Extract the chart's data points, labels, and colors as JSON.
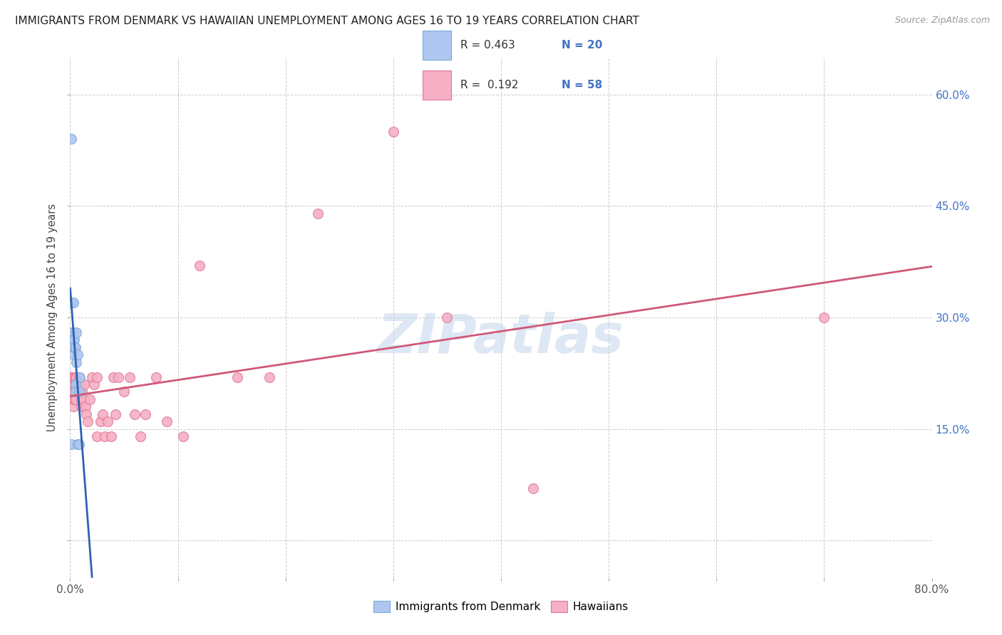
{
  "title": "IMMIGRANTS FROM DENMARK VS HAWAIIAN UNEMPLOYMENT AMONG AGES 16 TO 19 YEARS CORRELATION CHART",
  "source": "Source: ZipAtlas.com",
  "ylabel": "Unemployment Among Ages 16 to 19 years",
  "xlim": [
    0.0,
    0.8
  ],
  "ylim": [
    -0.05,
    0.65
  ],
  "ytick_positions": [
    0.0,
    0.15,
    0.3,
    0.45,
    0.6
  ],
  "ytick_labels_right": [
    "",
    "15.0%",
    "30.0%",
    "45.0%",
    "60.0%"
  ],
  "xtick_positions": [
    0.0,
    0.1,
    0.2,
    0.3,
    0.4,
    0.5,
    0.6,
    0.7,
    0.8
  ],
  "xtick_labels": [
    "0.0%",
    "",
    "",
    "",
    "",
    "",
    "",
    "",
    "80.0%"
  ],
  "denmark_R": "0.463",
  "denmark_N": "20",
  "hawaii_R": "0.192",
  "hawaii_N": "58",
  "denmark_color": "#aec6f0",
  "denmark_edge_color": "#7aabd4",
  "hawaii_color": "#f5b0c5",
  "hawaii_edge_color": "#e07898",
  "denmark_line_color": "#3060b0",
  "hawaii_line_color": "#d05878",
  "background_color": "#ffffff",
  "grid_color": "#cccccc",
  "watermark": "ZIPatlas",
  "watermark_color": "#c8d8ee",
  "legend_r1_color": "#4472c4",
  "legend_r2_color": "#4472c4",
  "denmark_x": [
    0.001,
    0.001,
    0.002,
    0.002,
    0.002,
    0.003,
    0.003,
    0.003,
    0.003,
    0.004,
    0.004,
    0.004,
    0.005,
    0.005,
    0.006,
    0.006,
    0.007,
    0.007,
    0.008,
    0.009
  ],
  "denmark_y": [
    0.54,
    0.12,
    0.32,
    0.3,
    0.27,
    0.32,
    0.28,
    0.27,
    0.25,
    0.27,
    0.26,
    0.12,
    0.26,
    0.2,
    0.28,
    0.24,
    0.25,
    0.12,
    0.2,
    0.22
  ],
  "hawaii_x": [
    0.001,
    0.001,
    0.002,
    0.002,
    0.002,
    0.003,
    0.003,
    0.003,
    0.003,
    0.004,
    0.004,
    0.004,
    0.005,
    0.005,
    0.005,
    0.006,
    0.006,
    0.007,
    0.008,
    0.008,
    0.009,
    0.01,
    0.01,
    0.011,
    0.012,
    0.013,
    0.014,
    0.015,
    0.016,
    0.018,
    0.02,
    0.022,
    0.025,
    0.025,
    0.028,
    0.03,
    0.032,
    0.035,
    0.038,
    0.04,
    0.042,
    0.045,
    0.05,
    0.055,
    0.06,
    0.065,
    0.07,
    0.08,
    0.09,
    0.105,
    0.12,
    0.155,
    0.185,
    0.23,
    0.3,
    0.35,
    0.43,
    0.7
  ],
  "hawaii_y": [
    0.2,
    0.22,
    0.22,
    0.2,
    0.2,
    0.22,
    0.2,
    0.19,
    0.18,
    0.22,
    0.21,
    0.19,
    0.22,
    0.21,
    0.19,
    0.22,
    0.2,
    0.21,
    0.22,
    0.2,
    0.21,
    0.19,
    0.18,
    0.2,
    0.19,
    0.21,
    0.18,
    0.17,
    0.16,
    0.19,
    0.22,
    0.21,
    0.22,
    0.14,
    0.16,
    0.17,
    0.14,
    0.16,
    0.14,
    0.22,
    0.17,
    0.22,
    0.2,
    0.22,
    0.17,
    0.14,
    0.17,
    0.22,
    0.16,
    0.14,
    0.37,
    0.22,
    0.22,
    0.44,
    0.55,
    0.3,
    0.07,
    0.3
  ],
  "marker_size": 100
}
